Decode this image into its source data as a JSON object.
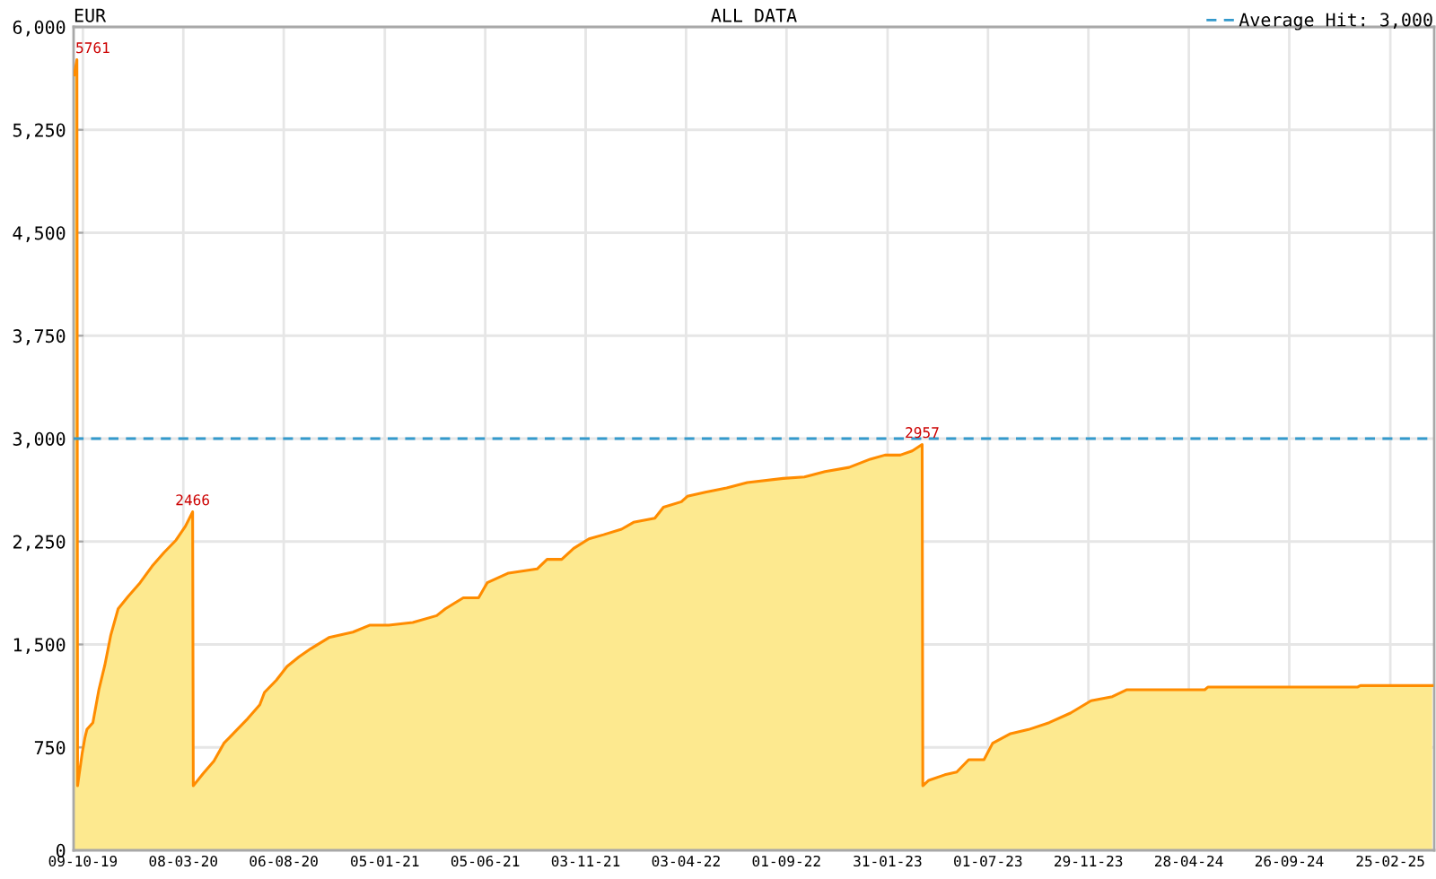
{
  "chart_data": {
    "type": "area",
    "title": "EUR",
    "subtitle": "ALL DATA",
    "x": [
      "2019-09-26",
      "2019-09-30",
      "2019-10-01",
      "2019-10-03",
      "2019-10-08",
      "2019-10-12",
      "2019-10-15",
      "2019-10-24",
      "2019-11-02",
      "2019-11-11",
      "2019-11-20",
      "2019-12-01",
      "2019-12-16",
      "2020-01-03",
      "2020-01-21",
      "2020-02-08",
      "2020-02-26",
      "2020-03-11",
      "2020-03-22",
      "2020-03-23",
      "2020-04-07",
      "2020-04-23",
      "2020-05-08",
      "2020-05-26",
      "2020-06-13",
      "2020-07-01",
      "2020-07-08",
      "2020-07-26",
      "2020-08-11",
      "2020-08-29",
      "2020-09-16",
      "2020-10-13",
      "2020-11-18",
      "2020-12-13",
      "2021-01-11",
      "2021-02-16",
      "2021-03-24",
      "2021-04-06",
      "2021-05-03",
      "2021-05-26",
      "2021-06-08",
      "2021-07-10",
      "2021-08-22",
      "2021-09-06",
      "2021-09-28",
      "2021-10-16",
      "2021-11-08",
      "2021-11-30",
      "2021-12-27",
      "2022-01-14",
      "2022-02-15",
      "2022-02-28",
      "2022-03-27",
      "2022-04-05",
      "2022-05-02",
      "2022-06-03",
      "2022-07-04",
      "2022-08-27",
      "2022-09-28",
      "2022-10-29",
      "2022-12-04",
      "2023-01-05",
      "2023-01-27",
      "2023-02-19",
      "2023-03-09",
      "2023-03-24",
      "2023-03-25",
      "2023-04-03",
      "2023-04-27",
      "2023-05-15",
      "2023-06-02",
      "2023-06-25",
      "2023-07-08",
      "2023-08-04",
      "2023-08-31",
      "2023-10-01",
      "2023-11-02",
      "2023-12-03",
      "2024-01-04",
      "2024-01-26",
      "2024-05-22",
      "2024-05-27",
      "2025-01-07",
      "2025-01-11",
      "2025-04-29"
    ],
    "series": [
      {
        "color": "#ff8c00",
        "values": [
          5650,
          5761,
          470,
          540,
          710,
          820,
          880,
          930,
          1170,
          1350,
          1570,
          1760,
          1850,
          1950,
          2070,
          2170,
          2260,
          2360,
          2466,
          470,
          560,
          650,
          780,
          870,
          960,
          1060,
          1150,
          1240,
          1340,
          1410,
          1470,
          1550,
          1590,
          1640,
          1640,
          1660,
          1710,
          1760,
          1840,
          1840,
          1950,
          2020,
          2050,
          2120,
          2120,
          2200,
          2270,
          2300,
          2340,
          2390,
          2420,
          2500,
          2540,
          2580,
          2610,
          2640,
          2680,
          2710,
          2720,
          2760,
          2790,
          2850,
          2880,
          2880,
          2910,
          2957,
          470,
          510,
          550,
          570,
          660,
          660,
          780,
          850,
          880,
          930,
          1000,
          1090,
          1120,
          1170,
          1170,
          1190,
          1190,
          1200,
          1200
        ],
        "value_labels": [
          null,
          "5761",
          null,
          null,
          null,
          null,
          null,
          null,
          null,
          null,
          null,
          null,
          null,
          null,
          null,
          null,
          null,
          null,
          "2466",
          null,
          null,
          null,
          null,
          null,
          null,
          null,
          null,
          null,
          null,
          null,
          null,
          null,
          null,
          null,
          null,
          null,
          null,
          null,
          null,
          null,
          null,
          null,
          null,
          null,
          null,
          null,
          null,
          null,
          null,
          null,
          null,
          null,
          null,
          null,
          null,
          null,
          null,
          null,
          null,
          null,
          null,
          null,
          null,
          null,
          null,
          "2957",
          null,
          null,
          null,
          null,
          null,
          null,
          null,
          null,
          null,
          null,
          null,
          null,
          null,
          null,
          null,
          null,
          null,
          null,
          null
        ]
      }
    ],
    "xlim": [
      "2019-09-25",
      "2025-05-02"
    ],
    "xticks": [
      {
        "value": "2019-10-09",
        "label": "09-10-19"
      },
      {
        "value": "2020-03-08",
        "label": "08-03-20"
      },
      {
        "value": "2020-08-06",
        "label": "06-08-20"
      },
      {
        "value": "2021-01-05",
        "label": "05-01-21"
      },
      {
        "value": "2021-06-05",
        "label": "05-06-21"
      },
      {
        "value": "2021-11-03",
        "label": "03-11-21"
      },
      {
        "value": "2022-04-03",
        "label": "03-04-22"
      },
      {
        "value": "2022-09-01",
        "label": "01-09-22"
      },
      {
        "value": "2023-01-31",
        "label": "31-01-23"
      },
      {
        "value": "2023-07-01",
        "label": "01-07-23"
      },
      {
        "value": "2023-11-29",
        "label": "29-11-23"
      },
      {
        "value": "2024-04-28",
        "label": "28-04-24"
      },
      {
        "value": "2024-09-26",
        "label": "26-09-24"
      },
      {
        "value": "2025-02-25",
        "label": "25-02-25"
      }
    ],
    "ylim": [
      0,
      6000
    ],
    "yticks": [
      0,
      750,
      {
        "value": 1500,
        "label": "1,500"
      },
      {
        "value": 2250,
        "label": "2,250"
      },
      {
        "value": 3000,
        "label": "3,000"
      },
      {
        "value": 3750,
        "label": "3,750"
      },
      {
        "value": 4500,
        "label": "4,500"
      },
      {
        "value": 5250,
        "label": "5,250"
      },
      {
        "value": 6000,
        "label": "6,000"
      }
    ],
    "ref_lines": [
      {
        "axis": "y",
        "value": 3000,
        "label": "Average Hit: 3,000",
        "color": "#3399cc",
        "line_style": "dashed"
      }
    ],
    "grid": true,
    "legend": "top right"
  }
}
